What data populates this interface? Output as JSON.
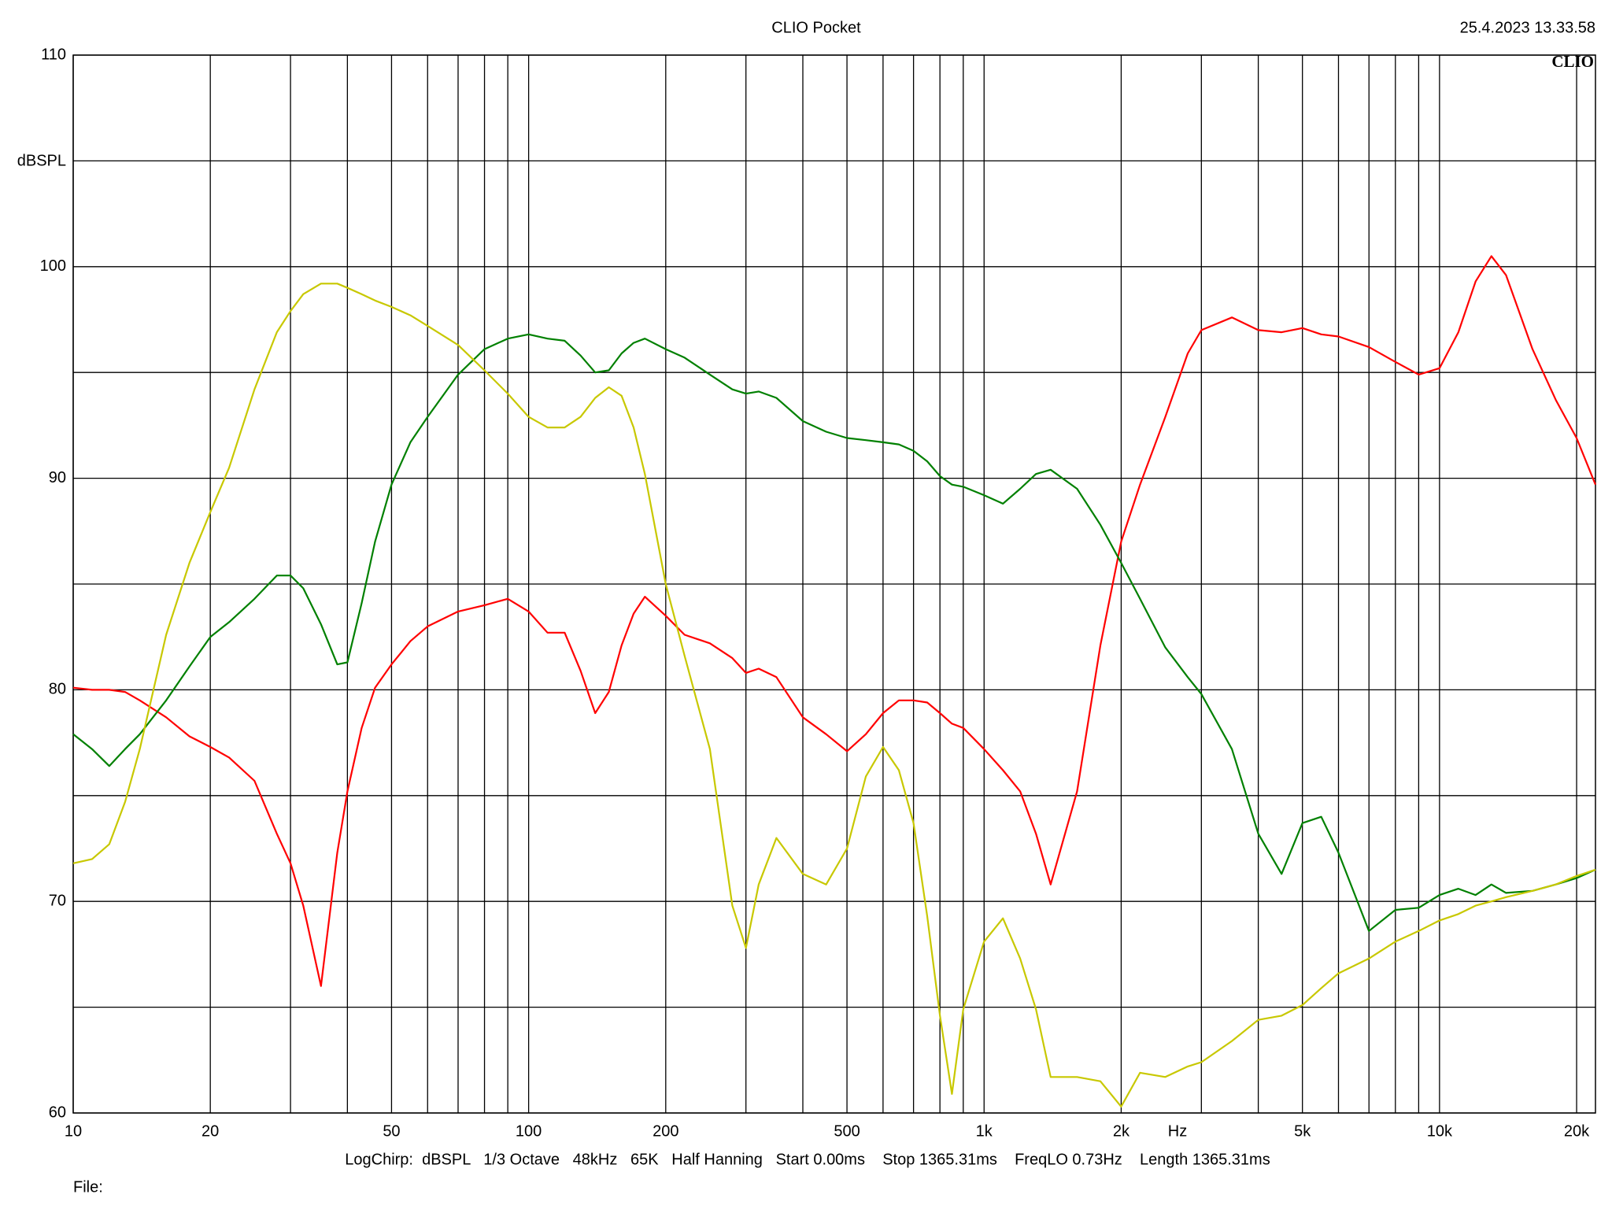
{
  "chart_data": {
    "type": "line",
    "title": "CLIO Pocket",
    "timestamp": "25.4.2023 13.33.58",
    "logo": "CLIO",
    "y_label": "dBSPL",
    "x_label": "Hz",
    "footer": "LogChirp:  dBSPL   1/3 Octave   48kHz   65K   Half Hanning   Start 0.00ms    Stop 1365.31ms    FreqLO 0.73Hz    Length 1365.31ms",
    "file_label": "File:",
    "xscale": "log",
    "grid": true,
    "xlim": [
      10,
      22000
    ],
    "ylim": [
      60,
      110
    ],
    "xticks": [
      10,
      20,
      50,
      100,
      200,
      500,
      {
        "value": 1000,
        "label": "1k"
      },
      {
        "value": 2000,
        "label": "2k"
      },
      {
        "value": 5000,
        "label": "5k"
      },
      {
        "value": 10000,
        "label": "10k"
      },
      {
        "value": 20000,
        "label": "20k"
      }
    ],
    "xgrid_minor": [
      30,
      40,
      60,
      70,
      80,
      90,
      300,
      400,
      600,
      700,
      800,
      900,
      3000,
      4000,
      6000,
      7000,
      8000,
      9000
    ],
    "yticks": [
      60,
      70,
      80,
      90,
      100,
      110
    ],
    "ygrid_minor": [
      65,
      75,
      85,
      95,
      105
    ],
    "x": [
      10,
      11,
      12,
      13,
      14,
      16,
      18,
      20,
      22,
      25,
      28,
      30,
      32,
      35,
      38,
      40,
      43,
      46,
      50,
      55,
      60,
      70,
      80,
      90,
      100,
      110,
      120,
      130,
      140,
      150,
      160,
      170,
      180,
      200,
      220,
      250,
      280,
      300,
      320,
      350,
      400,
      450,
      500,
      550,
      600,
      650,
      700,
      750,
      800,
      850,
      900,
      1000,
      1100,
      1200,
      1300,
      1400,
      1600,
      1800,
      2000,
      2200,
      2500,
      2800,
      3000,
      3500,
      4000,
      4500,
      5000,
      5500,
      6000,
      7000,
      8000,
      9000,
      10000,
      11000,
      12000,
      13000,
      14000,
      16000,
      18000,
      20000,
      22000
    ],
    "series": [
      {
        "color": "#ff0000",
        "values": [
          80.1,
          80.0,
          80.0,
          79.9,
          79.5,
          78.7,
          77.8,
          77.3,
          76.8,
          75.7,
          73.2,
          71.8,
          69.8,
          66.0,
          72.3,
          75.2,
          78.2,
          80.1,
          81.2,
          82.3,
          83.0,
          83.7,
          84.0,
          84.3,
          83.7,
          82.7,
          82.7,
          80.9,
          78.9,
          79.9,
          82.1,
          83.6,
          84.4,
          83.5,
          82.6,
          82.2,
          81.5,
          80.8,
          81.0,
          80.6,
          78.7,
          77.9,
          77.1,
          77.9,
          78.9,
          79.5,
          79.5,
          79.4,
          78.9,
          78.4,
          78.2,
          77.2,
          76.2,
          75.2,
          73.2,
          70.8,
          75.2,
          82.1,
          87.0,
          89.7,
          92.9,
          95.9,
          97.0,
          97.6,
          97.0,
          96.9,
          97.1,
          96.8,
          96.7,
          96.2,
          95.5,
          94.9,
          95.2,
          96.9,
          99.3,
          100.5,
          99.6,
          96.1,
          93.7,
          91.9,
          89.7
        ]
      },
      {
        "color": "#008000",
        "values": [
          77.9,
          77.2,
          76.4,
          77.2,
          77.9,
          79.5,
          81.1,
          82.5,
          83.2,
          84.3,
          85.4,
          85.4,
          84.8,
          83.1,
          81.2,
          81.3,
          84.1,
          87.0,
          89.7,
          91.7,
          92.9,
          94.9,
          96.1,
          96.6,
          96.8,
          96.6,
          96.5,
          95.8,
          95.0,
          95.1,
          95.9,
          96.4,
          96.6,
          96.1,
          95.7,
          94.9,
          94.2,
          94.0,
          94.1,
          93.8,
          92.7,
          92.2,
          91.9,
          91.8,
          91.7,
          91.6,
          91.3,
          90.8,
          90.1,
          89.7,
          89.6,
          89.2,
          88.8,
          89.5,
          90.2,
          90.4,
          89.5,
          87.8,
          86.0,
          84.3,
          82.0,
          80.6,
          79.8,
          77.2,
          73.2,
          71.3,
          73.7,
          74.0,
          72.3,
          68.6,
          69.6,
          69.7,
          70.3,
          70.6,
          70.3,
          70.8,
          70.4,
          70.5,
          70.8,
          71.1,
          71.5
        ]
      },
      {
        "color": "#c8c800",
        "values": [
          71.8,
          72.0,
          72.7,
          74.7,
          77.2,
          82.6,
          86.0,
          88.4,
          90.5,
          94.2,
          96.9,
          97.9,
          98.7,
          99.2,
          99.2,
          99.0,
          98.7,
          98.4,
          98.1,
          97.7,
          97.2,
          96.3,
          95.1,
          94.0,
          92.9,
          92.4,
          92.4,
          92.9,
          93.8,
          94.3,
          93.9,
          92.4,
          90.2,
          85.0,
          81.6,
          77.2,
          69.8,
          67.8,
          70.8,
          73.0,
          71.3,
          70.8,
          72.5,
          75.9,
          77.3,
          76.2,
          73.7,
          69.3,
          64.6,
          60.9,
          64.9,
          68.1,
          69.2,
          67.3,
          64.9,
          61.7,
          61.7,
          61.5,
          60.3,
          61.9,
          61.7,
          62.2,
          62.4,
          63.4,
          64.4,
          64.6,
          65.1,
          65.9,
          66.6,
          67.3,
          68.1,
          68.6,
          69.1,
          69.4,
          69.8,
          70.0,
          70.2,
          70.5,
          70.8,
          71.2,
          71.5
        ]
      }
    ]
  }
}
